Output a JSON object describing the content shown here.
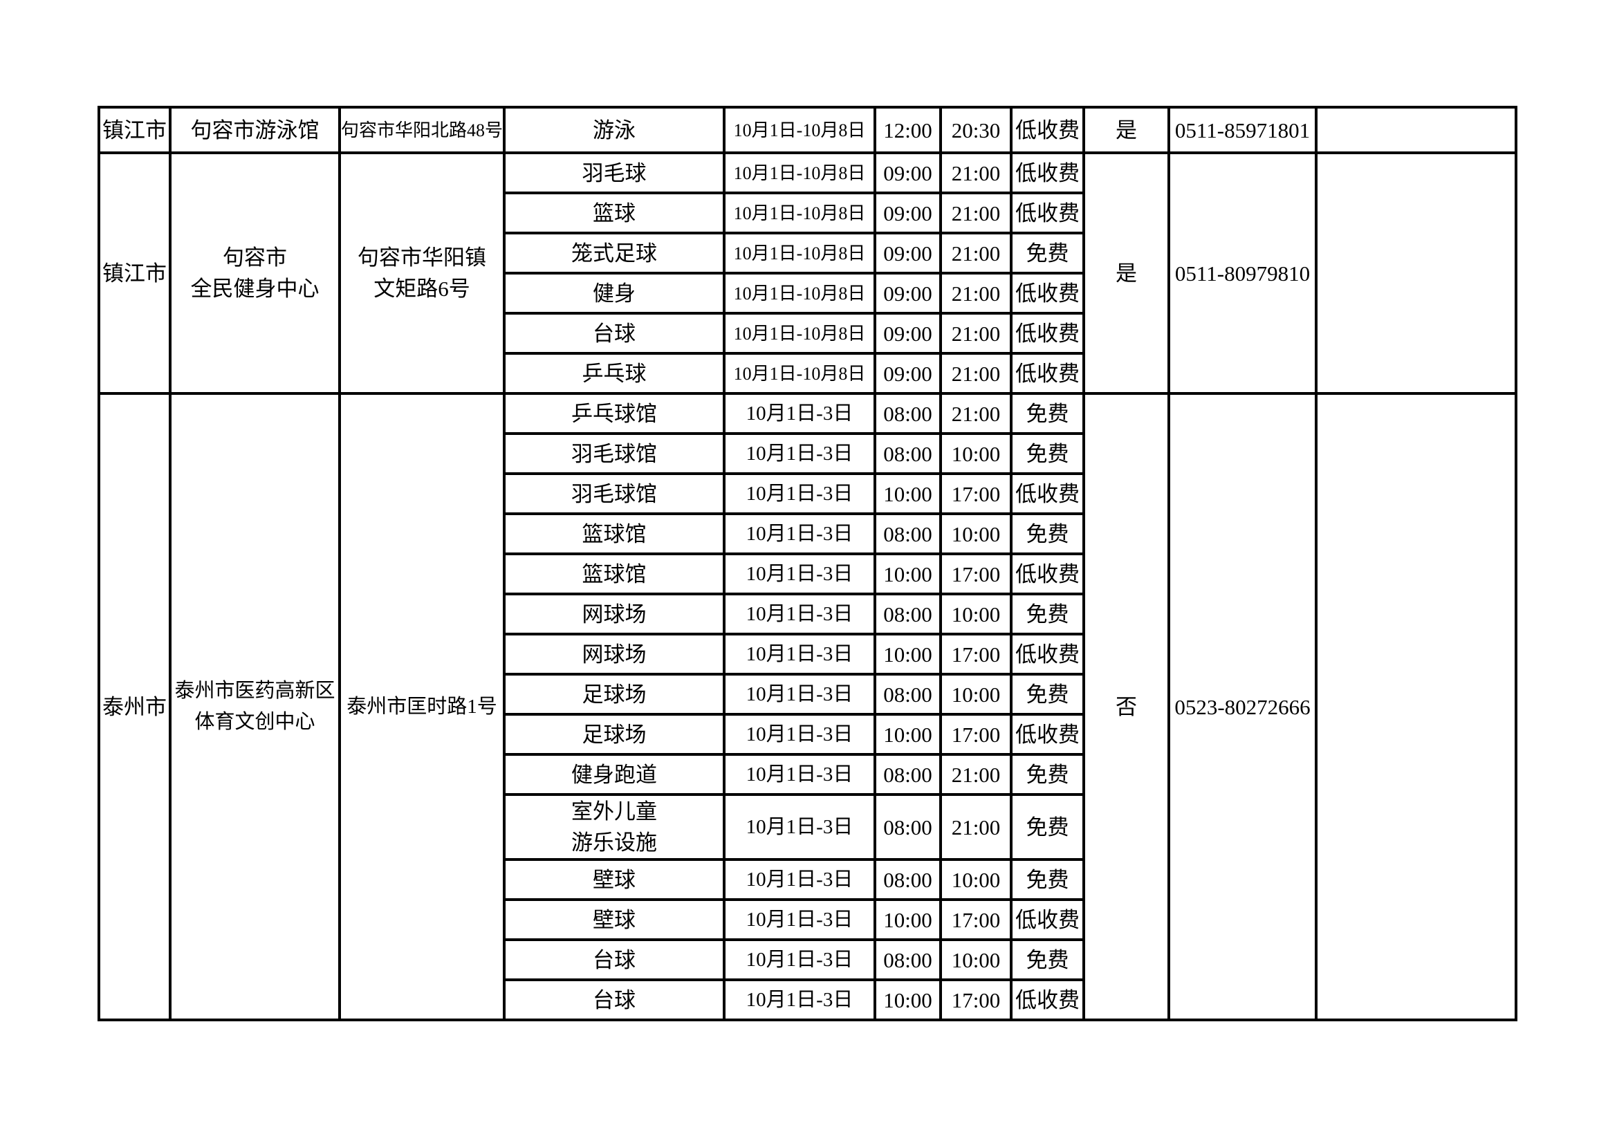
{
  "page": {
    "background_color": "#ffffff",
    "text_color": "#000000",
    "grid_color": "#000000"
  },
  "table": {
    "groups": [
      {
        "city": "镇江市",
        "venue_lines": [
          "句容市游泳馆"
        ],
        "address_lines": [
          "句容市华阳北路48号"
        ],
        "reservation": "是",
        "phone": "0511-85971801",
        "remark": "",
        "rows": [
          {
            "facility_lines": [
              "游泳"
            ],
            "date": "10月1日-10月8日",
            "start_time": "12:00",
            "end_time": "20:30",
            "fee": "低收费"
          }
        ]
      },
      {
        "city": "镇江市",
        "venue_lines": [
          "句容市",
          "全民健身中心"
        ],
        "address_lines": [
          "句容市华阳镇",
          "文矩路6号"
        ],
        "reservation": "是",
        "phone": "0511-80979810",
        "remark": "",
        "rows": [
          {
            "facility_lines": [
              "羽毛球"
            ],
            "date": "10月1日-10月8日",
            "start_time": "09:00",
            "end_time": "21:00",
            "fee": "低收费"
          },
          {
            "facility_lines": [
              "篮球"
            ],
            "date": "10月1日-10月8日",
            "start_time": "09:00",
            "end_time": "21:00",
            "fee": "低收费"
          },
          {
            "facility_lines": [
              "笼式足球"
            ],
            "date": "10月1日-10月8日",
            "start_time": "09:00",
            "end_time": "21:00",
            "fee": "免费"
          },
          {
            "facility_lines": [
              "健身"
            ],
            "date": "10月1日-10月8日",
            "start_time": "09:00",
            "end_time": "21:00",
            "fee": "低收费"
          },
          {
            "facility_lines": [
              "台球"
            ],
            "date": "10月1日-10月8日",
            "start_time": "09:00",
            "end_time": "21:00",
            "fee": "低收费"
          },
          {
            "facility_lines": [
              "乒乓球"
            ],
            "date": "10月1日-10月8日",
            "start_time": "09:00",
            "end_time": "21:00",
            "fee": "低收费"
          }
        ]
      },
      {
        "city": "泰州市",
        "venue_lines": [
          "泰州市医药高新区",
          "体育文创中心"
        ],
        "address_lines": [
          "泰州市匡时路1号"
        ],
        "reservation": "否",
        "phone": "0523-80272666",
        "remark": "",
        "rows": [
          {
            "facility_lines": [
              "乒乓球馆"
            ],
            "date": "10月1日-3日",
            "start_time": "08:00",
            "end_time": "21:00",
            "fee": "免费"
          },
          {
            "facility_lines": [
              "羽毛球馆"
            ],
            "date": "10月1日-3日",
            "start_time": "08:00",
            "end_time": "10:00",
            "fee": "免费"
          },
          {
            "facility_lines": [
              "羽毛球馆"
            ],
            "date": "10月1日-3日",
            "start_time": "10:00",
            "end_time": "17:00",
            "fee": "低收费"
          },
          {
            "facility_lines": [
              "篮球馆"
            ],
            "date": "10月1日-3日",
            "start_time": "08:00",
            "end_time": "10:00",
            "fee": "免费"
          },
          {
            "facility_lines": [
              "篮球馆"
            ],
            "date": "10月1日-3日",
            "start_time": "10:00",
            "end_time": "17:00",
            "fee": "低收费"
          },
          {
            "facility_lines": [
              "网球场"
            ],
            "date": "10月1日-3日",
            "start_time": "08:00",
            "end_time": "10:00",
            "fee": "免费"
          },
          {
            "facility_lines": [
              "网球场"
            ],
            "date": "10月1日-3日",
            "start_time": "10:00",
            "end_time": "17:00",
            "fee": "低收费"
          },
          {
            "facility_lines": [
              "足球场"
            ],
            "date": "10月1日-3日",
            "start_time": "08:00",
            "end_time": "10:00",
            "fee": "免费"
          },
          {
            "facility_lines": [
              "足球场"
            ],
            "date": "10月1日-3日",
            "start_time": "10:00",
            "end_time": "17:00",
            "fee": "低收费"
          },
          {
            "facility_lines": [
              "健身跑道"
            ],
            "date": "10月1日-3日",
            "start_time": "08:00",
            "end_time": "21:00",
            "fee": "免费"
          },
          {
            "facility_lines": [
              "室外儿童",
              "游乐设施"
            ],
            "date": "10月1日-3日",
            "start_time": "08:00",
            "end_time": "21:00",
            "fee": "免费"
          },
          {
            "facility_lines": [
              "壁球"
            ],
            "date": "10月1日-3日",
            "start_time": "08:00",
            "end_time": "10:00",
            "fee": "免费"
          },
          {
            "facility_lines": [
              "壁球"
            ],
            "date": "10月1日-3日",
            "start_time": "10:00",
            "end_time": "17:00",
            "fee": "低收费"
          },
          {
            "facility_lines": [
              "台球"
            ],
            "date": "10月1日-3日",
            "start_time": "08:00",
            "end_time": "10:00",
            "fee": "免费"
          },
          {
            "facility_lines": [
              "台球"
            ],
            "date": "10月1日-3日",
            "start_time": "10:00",
            "end_time": "17:00",
            "fee": "低收费"
          }
        ]
      }
    ]
  }
}
